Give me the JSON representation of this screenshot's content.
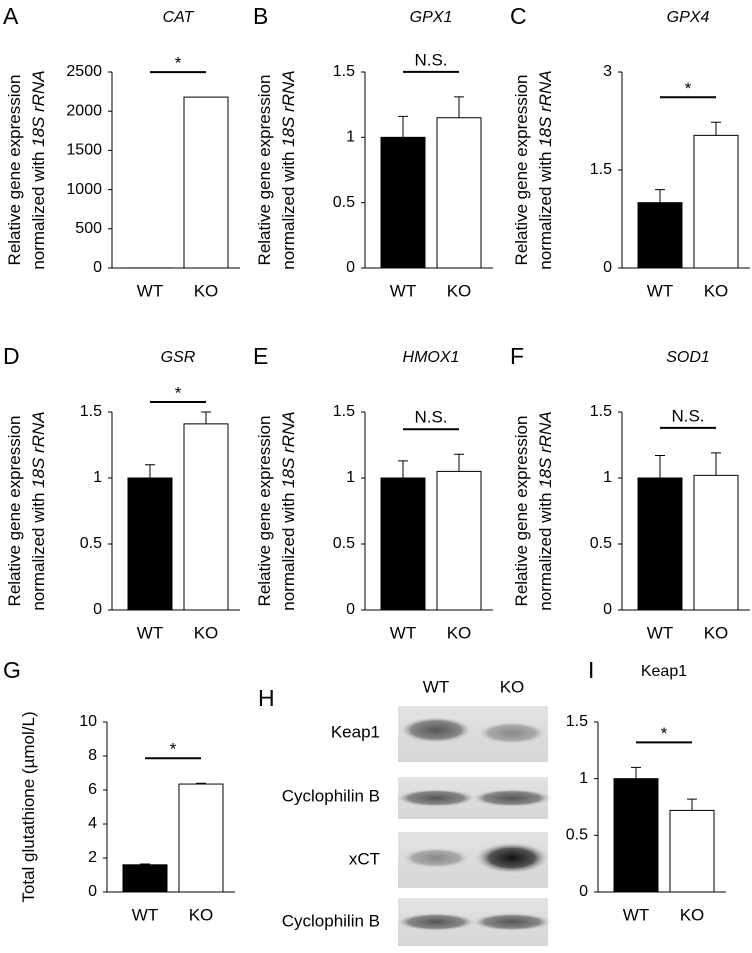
{
  "chart_data": [
    {
      "type": "bar",
      "panel": "A",
      "title": "CAT",
      "ylabel": [
        "Relative gene expression",
        "normalized with",
        "18S rRNA"
      ],
      "categories": [
        "WT",
        "KO"
      ],
      "values": [
        1,
        2180
      ],
      "errors": [
        0,
        0
      ],
      "colors": [
        "#000000",
        "#ffffff"
      ],
      "ylim": [
        0,
        2500
      ],
      "yticks": [
        0,
        500,
        1000,
        1500,
        2000,
        2500
      ],
      "annotation": "*"
    },
    {
      "type": "bar",
      "panel": "B",
      "title": "GPX1",
      "ylabel": [
        "Relative gene expression",
        "normalized with",
        "18S rRNA"
      ],
      "categories": [
        "WT",
        "KO"
      ],
      "values": [
        1,
        1.15
      ],
      "errors": [
        0.16,
        0.16
      ],
      "colors": [
        "#000000",
        "#ffffff"
      ],
      "ylim": [
        0,
        1.5
      ],
      "yticks": [
        0,
        0.5,
        1,
        1.5
      ],
      "annotation": "N.S."
    },
    {
      "type": "bar",
      "panel": "C",
      "title": "GPX4",
      "ylabel": [
        "Relative gene expression",
        "normalized with",
        "18S rRNA"
      ],
      "categories": [
        "WT",
        "KO"
      ],
      "values": [
        1,
        2.03
      ],
      "errors": [
        0.2,
        0.2
      ],
      "colors": [
        "#000000",
        "#ffffff"
      ],
      "ylim": [
        0,
        3
      ],
      "yticks": [
        0,
        1.5,
        3
      ],
      "annotation": "*"
    },
    {
      "type": "bar",
      "panel": "D",
      "title": "GSR",
      "ylabel": [
        "Relative gene expression",
        "normalized with",
        "18S rRNA"
      ],
      "categories": [
        "WT",
        "KO"
      ],
      "values": [
        1,
        1.41
      ],
      "errors": [
        0.1,
        0.09
      ],
      "colors": [
        "#000000",
        "#ffffff"
      ],
      "ylim": [
        0,
        1.5
      ],
      "yticks": [
        0,
        0.5,
        1,
        1.5
      ],
      "annotation": "*"
    },
    {
      "type": "bar",
      "panel": "E",
      "title": "HMOX1",
      "ylabel": [
        "Relative gene expression",
        "normalized with",
        "18S rRNA"
      ],
      "categories": [
        "WT",
        "KO"
      ],
      "values": [
        1,
        1.05
      ],
      "errors": [
        0.13,
        0.13
      ],
      "colors": [
        "#000000",
        "#ffffff"
      ],
      "ylim": [
        0,
        1.5
      ],
      "yticks": [
        0,
        0.5,
        1,
        1.5
      ],
      "annotation": "N.S."
    },
    {
      "type": "bar",
      "panel": "F",
      "title": "SOD1",
      "ylabel": [
        "Relative gene expression",
        "normalized with",
        "18S rRNA"
      ],
      "categories": [
        "WT",
        "KO"
      ],
      "values": [
        1,
        1.02
      ],
      "errors": [
        0.17,
        0.17
      ],
      "colors": [
        "#000000",
        "#ffffff"
      ],
      "ylim": [
        0,
        1.5
      ],
      "yticks": [
        0,
        0.5,
        1,
        1.5
      ],
      "annotation": "N.S."
    },
    {
      "type": "bar",
      "panel": "G",
      "ylabel": [
        "Total glutathione (µmol/L)"
      ],
      "categories": [
        "WT",
        "KO"
      ],
      "values": [
        1.6,
        6.35
      ],
      "errors": [
        0.05,
        0.05
      ],
      "colors": [
        "#000000",
        "#ffffff"
      ],
      "ylim": [
        0,
        10
      ],
      "yticks": [
        0,
        2,
        4,
        6,
        8,
        10
      ],
      "annotation": "*"
    },
    {
      "type": "bar",
      "panel": "I",
      "title": "Keap1",
      "categories": [
        "WT",
        "KO"
      ],
      "values": [
        1,
        0.72
      ],
      "errors": [
        0.1,
        0.1
      ],
      "colors": [
        "#000000",
        "#ffffff"
      ],
      "ylim": [
        0,
        1.5
      ],
      "yticks": [
        0,
        0.5,
        1,
        1.5
      ],
      "annotation": "*"
    }
  ],
  "blot": {
    "panel": "H",
    "lanes": [
      "WT",
      "KO"
    ],
    "rows": [
      "Keap1",
      "Cyclophilin B",
      "xCT",
      "Cyclophilin B"
    ]
  }
}
